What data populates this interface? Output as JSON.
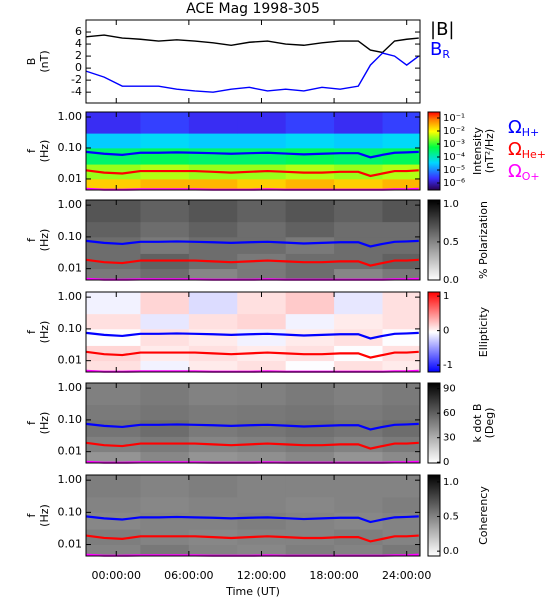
{
  "chart_data": [
    {
      "type": "line",
      "title": "ACE Mag 1998-305",
      "ylabel": [
        "B",
        "(nT)"
      ],
      "x": [
        -2.5,
        -1,
        0.5,
        2,
        3.5,
        5,
        6.5,
        8,
        9.5,
        11,
        12.5,
        14,
        15.5,
        17,
        18.5,
        20,
        21,
        22,
        23,
        24,
        25
      ],
      "series": [
        {
          "name": "|B|",
          "color": "#000000",
          "values": [
            5.2,
            5.5,
            5.0,
            4.8,
            4.5,
            4.7,
            4.5,
            4.2,
            3.8,
            4.3,
            4.5,
            4.0,
            3.8,
            4.2,
            4.5,
            4.5,
            3.0,
            2.6,
            4.5,
            4.8,
            5.0
          ]
        },
        {
          "name": "BR",
          "color": "#0000ff",
          "values": [
            -0.5,
            -1.5,
            -3.0,
            -3.0,
            -3.0,
            -3.5,
            -3.8,
            -4.0,
            -3.5,
            -3.2,
            -3.8,
            -3.5,
            -3.8,
            -3.2,
            -3.5,
            -3.0,
            0.5,
            2.5,
            2.0,
            0.5,
            2.0
          ]
        }
      ],
      "xlim": [
        -2.5,
        25.1
      ],
      "ylim": [
        -5.8,
        8
      ],
      "yticks": [
        -4,
        -2,
        0,
        2,
        4,
        6
      ]
    },
    {
      "type": "heatmap",
      "ylabel": [
        "f",
        "(Hz)"
      ],
      "log_y": true,
      "xlim": [
        -2.5,
        25.1
      ],
      "ylim": [
        0.0044,
        1.45
      ],
      "yticks": [
        0.01,
        {
          "value": 0.1,
          "label": "0.10"
        },
        {
          "value": 1,
          "label": "1.00"
        }
      ],
      "tbins": [
        -2.5,
        2,
        6,
        10,
        14,
        18,
        22,
        25.1
      ],
      "fbins": [
        0.0044,
        0.01,
        0.03,
        0.1,
        0.3,
        1.45
      ],
      "z": [
        [
          0.02,
          0.03,
          0.03,
          0.02,
          0.03,
          0.02,
          0.03
        ],
        [
          0.003,
          0.004,
          0.003,
          0.003,
          0.004,
          0.003,
          0.004
        ],
        [
          0.0003,
          0.0004,
          0.0003,
          0.0003,
          0.0004,
          0.0003,
          0.0004
        ],
        [
          3e-05,
          4e-05,
          3e-05,
          3e-05,
          4e-05,
          3e-05,
          4e-05
        ],
        [
          2e-06,
          3e-06,
          2e-06,
          2e-06,
          3e-06,
          2e-06,
          3e-06
        ]
      ],
      "colormap": "rainbow",
      "log_color": true,
      "clim": [
        2.9e-07,
        0.29
      ],
      "cticks": [
        {
          "value": 0.1,
          "label": "10⁻¹"
        },
        {
          "value": 0.01,
          "label": "10⁻²"
        },
        {
          "value": 0.001,
          "label": "10⁻³"
        },
        {
          "value": 0.0001,
          "label": "10⁻⁴"
        },
        {
          "value": 1e-05,
          "label": "10⁻⁵"
        },
        {
          "value": 1e-06,
          "label": "10⁻⁶"
        }
      ],
      "colorbar_label": [
        "Intensity",
        "(nT²/Hz)"
      ],
      "series": [
        {
          "name": "ΩH+",
          "color": "#0000ff",
          "values": [
            0.075,
            0.065,
            0.06,
            0.07,
            0.07,
            0.072,
            0.07,
            0.068,
            0.065,
            0.068,
            0.07,
            0.066,
            0.062,
            0.065,
            0.068,
            0.068,
            0.05,
            0.06,
            0.07,
            0.072,
            0.075
          ]
        },
        {
          "name": "ΩHe+",
          "color": "#ff0000",
          "values": [
            0.019,
            0.016,
            0.015,
            0.018,
            0.018,
            0.018,
            0.018,
            0.017,
            0.016,
            0.017,
            0.018,
            0.017,
            0.016,
            0.016,
            0.017,
            0.017,
            0.0125,
            0.015,
            0.018,
            0.018,
            0.019
          ]
        },
        {
          "name": "ΩO+",
          "color": "#ff00ff",
          "values": [
            0.0048,
            0.0045,
            0.0045,
            0.0046,
            0.0046,
            0.0046,
            0.0046,
            0.0045,
            0.0045,
            0.0045,
            0.0046,
            0.0045,
            0.0045,
            0.0045,
            0.0045,
            0.0045,
            0.0045,
            0.0045,
            0.0046,
            0.0046,
            0.0048
          ]
        }
      ]
    },
    {
      "type": "heatmap",
      "ylabel": [
        "f",
        "(Hz)"
      ],
      "log_y": true,
      "xlim": [
        -2.5,
        25.1
      ],
      "ylim": [
        0.0044,
        1.45
      ],
      "yticks": [
        0.01,
        {
          "value": 0.1,
          "label": "0.10"
        },
        {
          "value": 1,
          "label": "1.00"
        }
      ],
      "tbins": [
        -2.5,
        2,
        6,
        10,
        14,
        18,
        22,
        25.1
      ],
      "fbins": [
        0.0044,
        0.01,
        0.03,
        0.1,
        0.3,
        1.45
      ],
      "z": [
        [
          0.55,
          0.6,
          0.5,
          0.55,
          0.6,
          0.5,
          0.55
        ],
        [
          0.6,
          0.65,
          0.6,
          0.55,
          0.6,
          0.6,
          0.65
        ],
        [
          0.6,
          0.55,
          0.6,
          0.6,
          0.55,
          0.6,
          0.6
        ],
        [
          0.65,
          0.6,
          0.65,
          0.6,
          0.65,
          0.6,
          0.6
        ],
        [
          0.7,
          0.65,
          0.7,
          0.65,
          0.7,
          0.65,
          0.7
        ]
      ],
      "colormap": "gray",
      "log_color": false,
      "clim": [
        0,
        1.05
      ],
      "cticks": [
        {
          "value": 0,
          "label": "0.0"
        },
        {
          "value": 0.5,
          "label": "0.5"
        },
        {
          "value": 1,
          "label": "1.0"
        }
      ],
      "colorbar_label": [
        "% Polarization"
      ]
    },
    {
      "type": "heatmap",
      "ylabel": [
        "f",
        "(Hz)"
      ],
      "log_y": true,
      "xlim": [
        -2.5,
        25.1
      ],
      "ylim": [
        0.0044,
        1.45
      ],
      "yticks": [
        0.01,
        {
          "value": 0.1,
          "label": "0.10"
        },
        {
          "value": 1,
          "label": "1.00"
        }
      ],
      "tbins": [
        -2.5,
        2,
        6,
        10,
        14,
        18,
        22,
        25.1
      ],
      "fbins": [
        0.0044,
        0.01,
        0.03,
        0.1,
        0.3,
        1.45
      ],
      "z": [
        [
          0.1,
          -0.1,
          0.05,
          0.1,
          -0.05,
          0.1,
          0.05
        ],
        [
          0.15,
          0.05,
          0.1,
          0.05,
          0.1,
          -0.05,
          0.1
        ],
        [
          -0.05,
          0.1,
          0.05,
          -0.1,
          0.05,
          0.1,
          -0.05
        ],
        [
          0.1,
          -0.15,
          0.1,
          0.15,
          -0.1,
          0.05,
          0.1
        ],
        [
          -0.1,
          0.15,
          -0.2,
          0.1,
          0.2,
          -0.15,
          0.1
        ]
      ],
      "colormap": "bwr",
      "log_color": false,
      "clim": [
        -1.2,
        1.12
      ],
      "cticks": [
        -1,
        0,
        1
      ],
      "colorbar_label": [
        "Ellipticity"
      ]
    },
    {
      "type": "heatmap",
      "ylabel": [
        "f",
        "(Hz)"
      ],
      "log_y": true,
      "xlim": [
        -2.5,
        25.1
      ],
      "ylim": [
        0.0044,
        1.45
      ],
      "yticks": [
        0.01,
        {
          "value": 0.1,
          "label": "0.10"
        },
        {
          "value": 1,
          "label": "1.00"
        }
      ],
      "tbins": [
        -2.5,
        2,
        6,
        10,
        14,
        18,
        22,
        25.1
      ],
      "fbins": [
        0.0044,
        0.01,
        0.03,
        0.1,
        0.3,
        1.45
      ],
      "z": [
        [
          40,
          45,
          40,
          42,
          45,
          40,
          44
        ],
        [
          48,
          50,
          46,
          48,
          50,
          47,
          50
        ],
        [
          52,
          55,
          50,
          52,
          54,
          52,
          55
        ],
        [
          50,
          52,
          50,
          51,
          52,
          50,
          52
        ],
        [
          48,
          50,
          47,
          48,
          50,
          48,
          50
        ]
      ],
      "colormap": "gray",
      "log_color": false,
      "clim": [
        -1,
        97
      ],
      "cticks": [
        0,
        30,
        60,
        90
      ],
      "colorbar_label": [
        "k dot B",
        "(Deg)"
      ]
    },
    {
      "type": "heatmap",
      "ylabel": [
        "f",
        "(Hz)"
      ],
      "log_y": true,
      "xlim": [
        -2.5,
        25.1
      ],
      "ylim": [
        0.0044,
        1.45
      ],
      "yticks": [
        0.01,
        {
          "value": 0.1,
          "label": "0.10"
        },
        {
          "value": 1,
          "label": "1.00"
        }
      ],
      "tbins": [
        -2.5,
        2,
        6,
        10,
        14,
        18,
        22,
        25.1
      ],
      "fbins": [
        0.0044,
        0.01,
        0.03,
        0.1,
        0.3,
        1.45
      ],
      "z": [
        [
          0.5,
          0.55,
          0.5,
          0.48,
          0.52,
          0.5,
          0.55
        ],
        [
          0.52,
          0.5,
          0.48,
          0.5,
          0.5,
          0.52,
          0.5
        ],
        [
          0.48,
          0.5,
          0.5,
          0.52,
          0.5,
          0.48,
          0.5
        ],
        [
          0.5,
          0.48,
          0.5,
          0.5,
          0.48,
          0.5,
          0.52
        ],
        [
          0.52,
          0.5,
          0.52,
          0.5,
          0.5,
          0.5,
          0.5
        ]
      ],
      "colormap": "gray",
      "log_color": false,
      "clim": [
        -0.07,
        1.1
      ],
      "cticks": [
        {
          "value": 0,
          "label": "0.0"
        },
        {
          "value": 0.5,
          "label": "0.5"
        },
        {
          "value": 1,
          "label": "1.0"
        }
      ],
      "colorbar_label": [
        "Coherency"
      ],
      "xticks": [
        {
          "value": 0,
          "label": "00:00:00"
        },
        {
          "value": 6,
          "label": "06:00:00"
        },
        {
          "value": 12,
          "label": "12:00:00"
        },
        {
          "value": 18,
          "label": "18:00:00"
        },
        {
          "value": 24,
          "label": "24:00:00"
        }
      ],
      "xlabel": "Time (UT)"
    }
  ]
}
